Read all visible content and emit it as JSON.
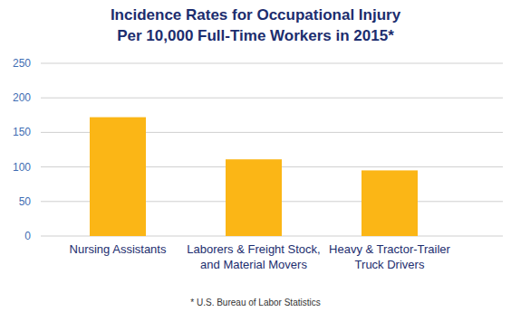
{
  "chart_data": {
    "type": "bar",
    "title": "Incidence Rates for Occupational Injury",
    "subtitle": "Per 10,000 Full-Time Workers in 2015*",
    "categories": [
      "Nursing Assistants",
      "Laborers & Freight Stock, and Material Movers",
      "Heavy & Tractor-Trailer Truck Drivers"
    ],
    "values": [
      172,
      111,
      95
    ],
    "color": "#fbb616",
    "ylim": [
      0,
      250
    ],
    "yticks": [
      0,
      50,
      100,
      150,
      200,
      250
    ],
    "grid": true,
    "annotations": [
      "* U.S. Bureau of Labor Statistics"
    ]
  }
}
